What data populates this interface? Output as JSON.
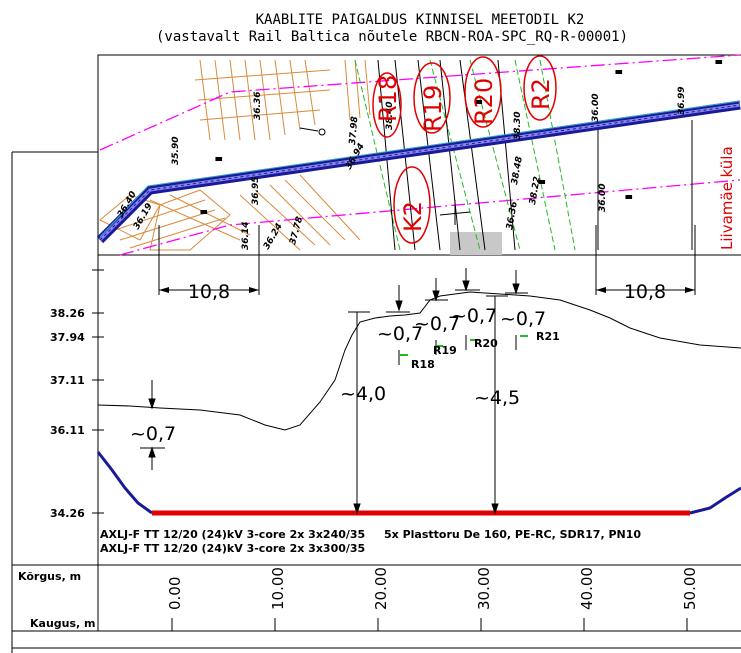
{
  "title": {
    "line1": "KAABLITE PAIGALDUS KINNISEL MEETODIL K2",
    "line2": "(vastavalt Rail Baltica nõutele RBCN-ROA-SPC_RQ-R-00001)"
  },
  "map": {
    "village_label": "Liivamäe küla",
    "circled_labels": [
      "R18",
      "R19",
      "R20",
      "R2",
      "K2"
    ],
    "spot_heights": [
      "36.36",
      "35.90",
      "36.19",
      "36.14",
      "36.40",
      "37.78",
      "38.40",
      "38.30",
      "38.48",
      "36.00",
      "36.99",
      "36.00",
      "36.36",
      "38.22",
      "36.24",
      "37.98",
      "36.94",
      "36.95"
    ],
    "width_left": "10,8",
    "width_right": "10,8"
  },
  "profile": {
    "elevations": [
      "38.26",
      "37.94",
      "37.11",
      "36.11",
      "34.26"
    ],
    "dims": {
      "cover_left": "~0,7",
      "depth_left": "~4,0",
      "depth_right": "~4,5",
      "rail_cover": [
        "~0,7",
        "~0,7",
        "~0,7",
        "~0,7"
      ]
    },
    "rails": [
      "R18",
      "R19",
      "R20",
      "R21"
    ],
    "cable_lines": [
      "AXLJ-F TT 12/20 (24)kV 3-core 2x 3x240/35",
      "AXLJ-F TT 12/20 (24)kV 3-core 2x 3x300/35"
    ],
    "duct_note": "5x Plasttoru De 160, PE-RC, SDR17, PN10"
  },
  "table": {
    "row_elevation_label": "Kõrgus, m",
    "row_distance_label": "Kaugus, m",
    "distance_marks": [
      "0.00",
      "10.00",
      "20.00",
      "30.00",
      "40.00",
      "50.00"
    ]
  },
  "colors": {
    "pipe": "#e00000",
    "boundary": "#ff00ff",
    "route": "#1a1a99",
    "green_lines": "#22bb22",
    "parcel": "#d98a3c"
  }
}
